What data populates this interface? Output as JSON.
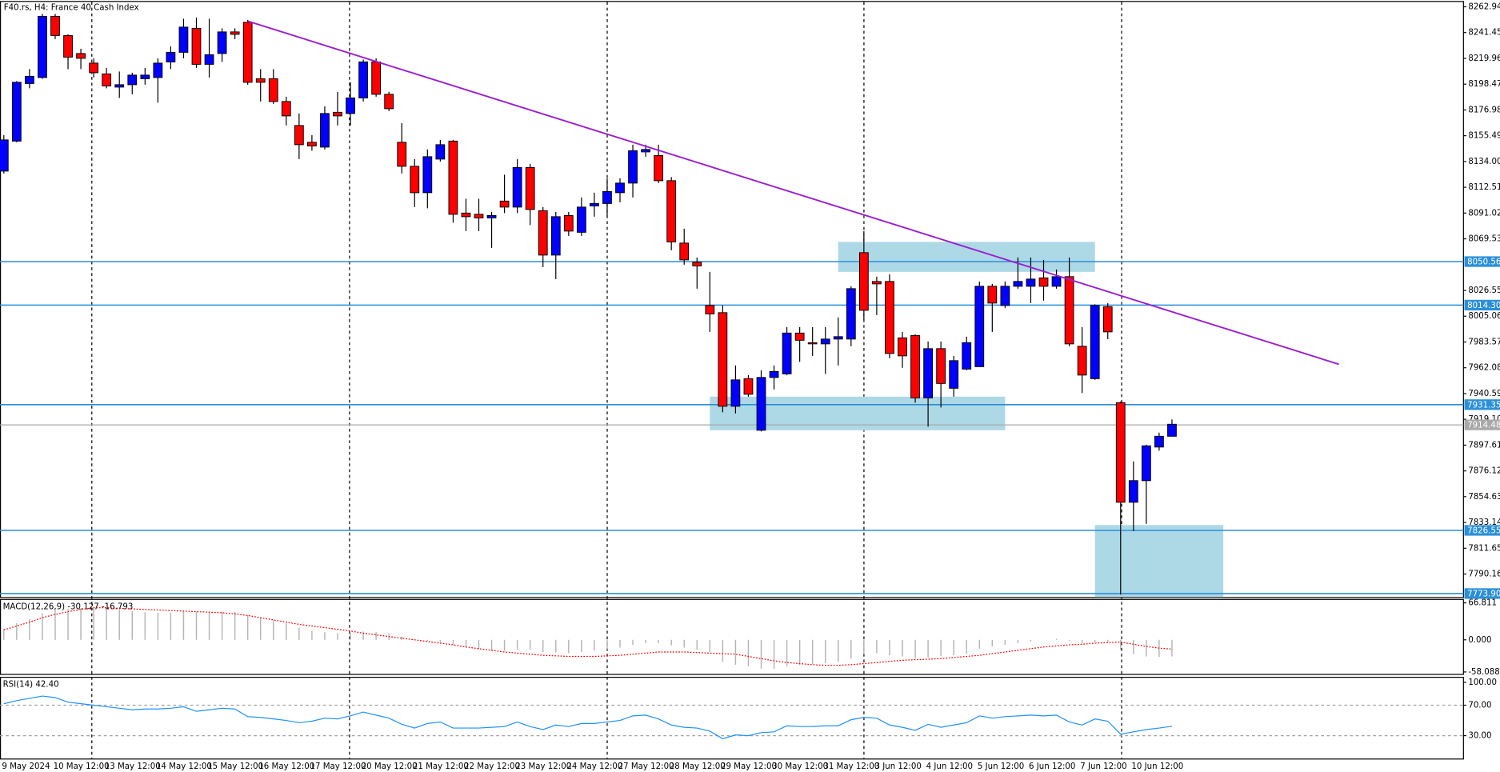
{
  "chart_data": [
    {
      "type": "candlestick",
      "title": "F40.rs, H4: France 40 Cash Index",
      "categories": [
        "9 May 2024",
        null,
        null,
        null,
        "10 May 12:00",
        null,
        null,
        null,
        "13 May 12:00",
        null,
        null,
        null,
        "14 May 12:00",
        null,
        null,
        null,
        "15 May 12:00",
        null,
        null,
        null,
        "16 May 12:00",
        null,
        null,
        null,
        "17 May 12:00",
        null,
        null,
        null,
        "20 May 12:00",
        null,
        null,
        null,
        "21 May 12:00",
        null,
        null,
        null,
        "22 May 12:00",
        null,
        null,
        null,
        "23 May 12:00",
        null,
        null,
        null,
        "24 May 12:00",
        null,
        null,
        null,
        "27 May 12:00",
        null,
        null,
        null,
        "28 May 12:00",
        null,
        null,
        null,
        "29 May 12:00",
        null,
        null,
        null,
        "30 May 12:00",
        null,
        null,
        null,
        "31 May 12:00",
        null,
        null,
        null,
        "3 Jun 12:00",
        null,
        null,
        null,
        "4 Jun 12:00",
        null,
        null,
        null,
        "5 Jun 12:00",
        null,
        null,
        null,
        "6 Jun 12:00",
        null,
        null,
        null,
        "7 Jun 12:00",
        null,
        null,
        null,
        "10 Jun 12:00",
        null,
        null,
        null
      ],
      "open": [
        8126,
        8151,
        8199,
        8204,
        8255,
        8239,
        8224,
        8216,
        8207,
        8196,
        8198,
        8203,
        8204,
        8217,
        8225,
        8245,
        8215,
        8224,
        8242,
        8250,
        8203,
        8203,
        8184,
        8164,
        8150,
        8146,
        8175,
        8174,
        8187,
        8217,
        8190,
        8150,
        8130,
        8108,
        8136,
        8151,
        8091,
        8090,
        8087,
        8101,
        8096,
        8129,
        8093,
        8056,
        8089,
        8075,
        8097,
        8099,
        8108,
        8116,
        8142,
        8139,
        8118,
        8066,
        8050,
        8014,
        8008,
        7930,
        7953,
        7910,
        7954,
        7957,
        7991,
        7983,
        7982,
        7986,
        7986,
        8058,
        8034,
        8034,
        7987,
        7989,
        7937,
        7978,
        7945,
        7961,
        7963,
        8030,
        8014,
        8030,
        8030,
        8037,
        8030,
        8038,
        7980,
        7953,
        8013,
        7933,
        7850,
        7868,
        7896,
        7905
      ],
      "high": [
        8156,
        8201,
        8211,
        8257,
        8257,
        8240,
        8228,
        8220,
        8212,
        8209,
        8208,
        8212,
        8220,
        8230,
        8253,
        8254,
        8253,
        8245,
        8245,
        8252,
        8211,
        8211,
        8188,
        8174,
        8156,
        8180,
        8192,
        8200,
        8219,
        8220,
        8192,
        8166,
        8136,
        8144,
        8152,
        8152,
        8103,
        8103,
        8092,
        8123,
        8136,
        8132,
        8096,
        8092,
        8092,
        8104,
        8108,
        8120,
        8120,
        8148,
        8148,
        8148,
        8121,
        8078,
        8054,
        8042,
        8014,
        7964,
        7956,
        7960,
        7964,
        7996,
        7996,
        7996,
        7996,
        8004,
        8030,
        8076,
        8038,
        8040,
        7992,
        7990,
        7984,
        7984,
        7972,
        7988,
        8034,
        8032,
        8034,
        8054,
        8054,
        8052,
        8044,
        8054,
        7996,
        8015,
        8016,
        7934,
        7884,
        7898,
        7908,
        7919
      ],
      "low": [
        8124,
        8150,
        8195,
        8203,
        8236,
        8211,
        8211,
        8204,
        8195,
        8187,
        8190,
        8198,
        8183,
        8211,
        8220,
        8212,
        8204,
        8217,
        8236,
        8198,
        8184,
        8182,
        8164,
        8136,
        8143,
        8144,
        8164,
        8164,
        8184,
        8188,
        8176,
        8124,
        8096,
        8095,
        8134,
        8083,
        8076,
        8076,
        8062,
        8091,
        8091,
        8081,
        8046,
        8036,
        8072,
        8072,
        8088,
        8088,
        8100,
        8104,
        8138,
        8116,
        8060,
        8048,
        8028,
        7992,
        7925,
        7924,
        7938,
        7909,
        7944,
        7956,
        7967,
        7972,
        7957,
        7964,
        7980,
        8002,
        8006,
        7970,
        7962,
        7933,
        7913,
        7929,
        7938,
        7960,
        7963,
        7992,
        8012,
        8028,
        8016,
        8018,
        8028,
        7980,
        7941,
        7952,
        7986,
        7773,
        7826,
        7832,
        7893,
        7905
      ],
      "close": [
        8152,
        8200,
        8205,
        8255,
        8239,
        8221,
        8220,
        8208,
        8197,
        8198,
        8206,
        8206,
        8216,
        8225,
        8246,
        8215,
        8223,
        8242,
        8240,
        8200,
        8200,
        8184,
        8172,
        8148,
        8147,
        8174,
        8172,
        8187,
        8217,
        8190,
        8178,
        8130,
        8108,
        8138,
        8148,
        8090,
        8088,
        8087,
        8089,
        8096,
        8129,
        8094,
        8056,
        8088,
        8076,
        8096,
        8099,
        8109,
        8116,
        8143,
        8144,
        8118,
        8067,
        8052,
        8047,
        8007,
        7930,
        7952,
        7940,
        7954,
        7959,
        7991,
        7985,
        7982,
        7986,
        7988,
        8028,
        8010,
        8032,
        7974,
        7972,
        7937,
        7978,
        7949,
        7968,
        7983,
        8030,
        8016,
        8030,
        8034,
        8036,
        8030,
        8038,
        7982,
        7956,
        8014,
        7992,
        7850,
        7868,
        7897,
        7905,
        7915
      ],
      "up_color": "#0000ff",
      "down_color": "#ff0000",
      "ylim": [
        7771,
        8267
      ],
      "yticks": [
        8262.94,
        8241.45,
        8219.96,
        8198.47,
        8176.98,
        8155.49,
        {
          "value": 8134,
          "label": "8134.00"
        },
        8112.51,
        8091.02,
        8069.53,
        8026.55,
        8005.06,
        7983.57,
        7962.08,
        7940.59,
        {
          "value": 7919.1,
          "label": "7919.10"
        },
        7897.61,
        7876.12,
        7854.63,
        7833.14,
        7811.65,
        7790.16
      ],
      "levels": [
        8050.56,
        {
          "value": 8014.3,
          "label": "8014.30"
        },
        7931.35,
        7826.55,
        {
          "value": 7773.9,
          "label": "7773.90"
        }
      ],
      "level_color": "#2b8fd8",
      "current_price": 7914.48,
      "price_color": "#a8a8a8",
      "trendline": {
        "x": [
          19,
          104
        ],
        "values": [
          8251,
          7965
        ],
        "color": "#9b1fd1"
      },
      "zones": [
        {
          "x": [
            65,
            85
          ],
          "values": [
            8042,
            8067
          ]
        },
        {
          "x": [
            55,
            78
          ],
          "values": [
            7910,
            7938
          ]
        },
        {
          "x": [
            85,
            95
          ],
          "values": [
            7771,
            7831
          ]
        }
      ],
      "zone_color": "#add8e6"
    },
    {
      "type": "macd",
      "title": "MACD(12,26,9) -30.127 -16.793",
      "values": [
        20,
        30,
        38,
        48,
        54,
        56,
        57,
        58,
        56,
        54,
        52,
        50,
        49,
        49,
        52,
        51,
        50,
        51,
        50,
        45,
        40,
        35,
        30,
        22,
        16,
        14,
        12,
        12,
        15,
        14,
        12,
        6,
        0,
        -3,
        -4,
        -10,
        -14,
        -18,
        -20,
        -20,
        -18,
        -18,
        -22,
        -23,
        -24,
        -22,
        -20,
        -17,
        -14,
        -9,
        -6,
        -6,
        -10,
        -14,
        -18,
        -22,
        -40,
        -45,
        -48,
        -52,
        -52,
        -48,
        -46,
        -44,
        -42,
        -40,
        -34,
        -26,
        -24,
        -28,
        -30,
        -34,
        -32,
        -30,
        -28,
        -25,
        -16,
        -12,
        -9,
        -6,
        -3,
        0,
        2,
        -2,
        -6,
        -4,
        -4,
        -18,
        -26,
        -30,
        -31,
        -30.127
      ],
      "signal": [
        18,
        25,
        32,
        40,
        46,
        51,
        55,
        58,
        58,
        57,
        56,
        55,
        54,
        53,
        52,
        51,
        50,
        49,
        47,
        44,
        40,
        36,
        32,
        28,
        25,
        22,
        19,
        16,
        12,
        9,
        6,
        3,
        0,
        -3,
        -6,
        -9,
        -13,
        -16,
        -19,
        -22,
        -24,
        -26,
        -28,
        -29,
        -30,
        -30,
        -30,
        -29,
        -28,
        -26,
        -24,
        -22,
        -22,
        -22,
        -23,
        -24,
        -25,
        -26,
        -30,
        -34,
        -38,
        -41,
        -43,
        -45,
        -46,
        -46,
        -45,
        -43,
        -41,
        -39,
        -37,
        -36,
        -35,
        -34,
        -32,
        -30,
        -28,
        -25,
        -22,
        -19,
        -16,
        -13,
        -11,
        -9,
        -8,
        -6,
        -5,
        -4,
        -8,
        -12,
        -15,
        -16.793
      ],
      "color": "#b4b4b4",
      "signal_color": "#ff0000",
      "ylim": [
        -61.7,
        72.2
      ],
      "yticks": [
        66.811,
        {
          "value": 0,
          "label": "0.000"
        },
        -58.088
      ]
    },
    {
      "type": "line",
      "title": "RSI(14) 42.40",
      "values": [
        72,
        76,
        79,
        82,
        80,
        74,
        72,
        70,
        68,
        66,
        64,
        65,
        65,
        66,
        68,
        62,
        64,
        66,
        65,
        55,
        54,
        52,
        50,
        47,
        49,
        53,
        52,
        56,
        61,
        57,
        53,
        45,
        40,
        46,
        48,
        40,
        40,
        40,
        41,
        42,
        48,
        42,
        38,
        44,
        42,
        46,
        46,
        48,
        50,
        56,
        57,
        52,
        44,
        41,
        40,
        36,
        26,
        31,
        30,
        34,
        35,
        43,
        42,
        42,
        43,
        43,
        51,
        54,
        53,
        44,
        41,
        37,
        45,
        41,
        44,
        47,
        56,
        53,
        55,
        56,
        57,
        56,
        57,
        48,
        44,
        52,
        49,
        32,
        35,
        38,
        40,
        42.4
      ],
      "color": "#1e90ff",
      "ylim": [
        0,
        106
      ],
      "yticks": [
        {
          "value": 100,
          "label": "100.00"
        },
        {
          "value": 70,
          "label": "70.00"
        },
        {
          "value": 30,
          "label": "30.00"
        }
      ],
      "levels": [
        70,
        30
      ]
    }
  ]
}
